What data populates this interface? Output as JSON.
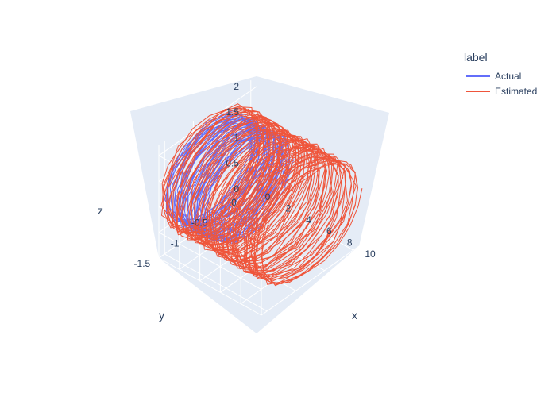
{
  "chart_data": {
    "type": "line3d",
    "title": "",
    "legend": {
      "title": "label",
      "placement": "top-right"
    },
    "axes": {
      "x": {
        "label": "x",
        "ticks": [
          "0",
          "2",
          "4",
          "6",
          "8",
          "10"
        ],
        "range": [
          0,
          10
        ]
      },
      "y": {
        "label": "y",
        "ticks": [
          "-1.5",
          "-1",
          "-0.5",
          "0"
        ],
        "range": [
          -1.6,
          0.1
        ]
      },
      "z": {
        "label": "z",
        "ticks": [
          "0",
          "0.5",
          "1",
          "1.5",
          "2"
        ],
        "range": [
          0,
          2.2
        ]
      }
    },
    "grid": true,
    "series": [
      {
        "name": "Actual",
        "color": "#636efa",
        "description_values": {
          "x_range": [
            0,
            4
          ],
          "y_center": -0.75,
          "z_center": 1.1,
          "radius": 0.75
        }
      },
      {
        "name": "Estimated",
        "color": "#ef553b",
        "description_values": {
          "x_range": [
            0,
            10
          ],
          "y_center": -0.75,
          "z_center": 1.1,
          "radius": 0.85
        }
      }
    ]
  }
}
